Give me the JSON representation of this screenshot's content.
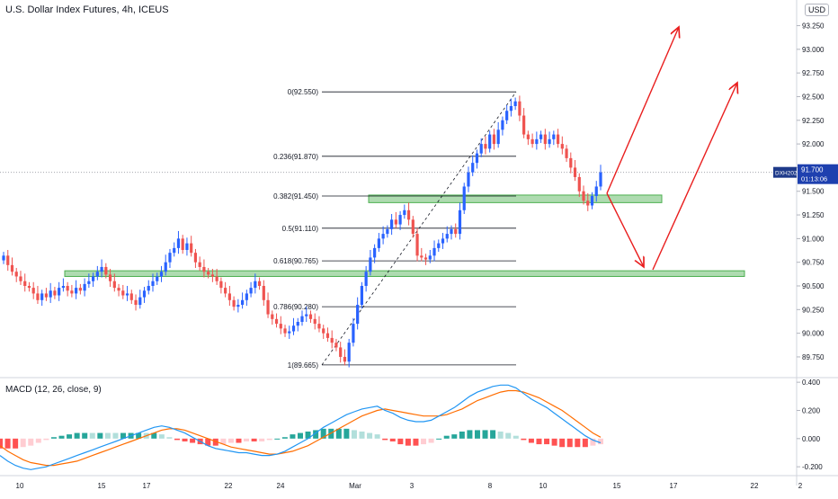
{
  "header": {
    "title": "U.S. Dollar Index Futures, 4h, ICEUS",
    "currency_badge": "USD"
  },
  "macd": {
    "label": "MACD (12, 26, close, 9)",
    "ticks": [
      "0.400",
      "0.200",
      "0.000",
      "-0.200"
    ]
  },
  "price_axis": {
    "ticks": [
      "93.250",
      "93.000",
      "92.750",
      "92.500",
      "92.250",
      "92.000",
      "91.750",
      "91.500",
      "91.250",
      "91.000",
      "90.750",
      "90.500",
      "90.250",
      "90.000",
      "89.750"
    ],
    "symbol_tag": "DXH2021",
    "last_price": "91.700",
    "countdown": "01:13:06"
  },
  "time_axis": {
    "ticks": [
      "10",
      "15",
      "17",
      "22",
      "24",
      "Mar",
      "3",
      "8",
      "10",
      "15",
      "17",
      "22",
      "2"
    ]
  },
  "fibonacci": [
    {
      "label": "0(92.550)",
      "price": 92.55
    },
    {
      "label": "0.236(91.870)",
      "price": 91.87
    },
    {
      "label": "0.382(91.450)",
      "price": 91.45
    },
    {
      "label": "0.5(91.110)",
      "price": 91.11
    },
    {
      "label": "0.618(90.765)",
      "price": 90.765
    },
    {
      "label": "0.786(90.280)",
      "price": 90.28
    },
    {
      "label": "1(89.665)",
      "price": 89.665
    }
  ],
  "zones": [
    {
      "name": "upper-support-zone",
      "low": 91.38,
      "high": 91.46,
      "color": "#4caf50"
    },
    {
      "name": "lower-support-zone",
      "low": 90.6,
      "high": 90.66,
      "color": "#4caf50"
    }
  ],
  "colors": {
    "up": "#2962ff",
    "down": "#ef5350",
    "macd_line": "#2196f3",
    "signal_line": "#ff6d00",
    "hist_up_strong": "#26a69a",
    "hist_up_weak": "#b2dfdb",
    "hist_down_strong": "#ff5252",
    "hist_down_weak": "#ffcdd2",
    "arrow": "#e91e1e",
    "zone": "#4caf50"
  },
  "chart_data": {
    "type": "candlestick",
    "y_range": [
      89.55,
      93.35
    ],
    "macd_range": [
      -0.25,
      0.42
    ],
    "closes": [
      90.82,
      90.72,
      90.65,
      90.6,
      90.55,
      90.5,
      90.48,
      90.42,
      90.35,
      90.42,
      90.38,
      90.45,
      90.4,
      90.48,
      90.5,
      90.45,
      90.42,
      90.48,
      90.45,
      90.52,
      90.55,
      90.6,
      90.65,
      90.7,
      90.62,
      90.55,
      90.48,
      90.45,
      90.4,
      90.42,
      90.35,
      90.3,
      90.38,
      90.45,
      90.5,
      90.55,
      90.6,
      90.65,
      90.75,
      90.85,
      90.9,
      91.0,
      90.88,
      90.95,
      90.85,
      90.75,
      90.7,
      90.65,
      90.62,
      90.6,
      90.55,
      90.48,
      90.42,
      90.35,
      90.28,
      90.3,
      90.35,
      90.42,
      90.48,
      90.55,
      90.5,
      90.35,
      90.2,
      90.15,
      90.1,
      90.05,
      90.0,
      90.02,
      90.08,
      90.12,
      90.18,
      90.2,
      90.15,
      90.1,
      90.05,
      90.0,
      89.95,
      89.9,
      89.85,
      89.75,
      89.7,
      89.9,
      90.1,
      90.3,
      90.5,
      90.65,
      90.8,
      90.9,
      91.0,
      91.05,
      91.1,
      91.2,
      91.15,
      91.25,
      91.3,
      91.2,
      91.05,
      90.82,
      90.8,
      90.78,
      90.82,
      90.9,
      90.95,
      91.0,
      91.05,
      91.1,
      91.05,
      91.3,
      91.55,
      91.7,
      91.8,
      91.9,
      92.0,
      91.95,
      92.1,
      92.0,
      92.15,
      92.25,
      92.35,
      92.4,
      92.45,
      92.3,
      92.1,
      92.05,
      92.0,
      92.05,
      92.1,
      92.0,
      92.05,
      92.1,
      92.0,
      91.95,
      91.85,
      91.75,
      91.65,
      91.5,
      91.4,
      91.35,
      91.45,
      91.55,
      91.7
    ],
    "macd_line": [
      -0.12,
      -0.16,
      -0.19,
      -0.21,
      -0.22,
      -0.21,
      -0.2,
      -0.18,
      -0.16,
      -0.14,
      -0.12,
      -0.1,
      -0.08,
      -0.06,
      -0.04,
      -0.02,
      0.0,
      0.02,
      0.04,
      0.06,
      0.08,
      0.09,
      0.08,
      0.06,
      0.04,
      0.01,
      -0.02,
      -0.05,
      -0.07,
      -0.08,
      -0.09,
      -0.1,
      -0.1,
      -0.11,
      -0.12,
      -0.12,
      -0.11,
      -0.09,
      -0.06,
      -0.03,
      0.0,
      0.04,
      0.08,
      0.11,
      0.14,
      0.17,
      0.19,
      0.21,
      0.22,
      0.23,
      0.2,
      0.18,
      0.15,
      0.13,
      0.12,
      0.12,
      0.13,
      0.16,
      0.19,
      0.22,
      0.26,
      0.3,
      0.33,
      0.35,
      0.37,
      0.38,
      0.38,
      0.36,
      0.32,
      0.28,
      0.25,
      0.22,
      0.18,
      0.14,
      0.1,
      0.06,
      0.02,
      -0.01,
      -0.03
    ],
    "signal_line": [
      -0.05,
      -0.09,
      -0.12,
      -0.15,
      -0.17,
      -0.18,
      -0.19,
      -0.19,
      -0.18,
      -0.17,
      -0.16,
      -0.14,
      -0.12,
      -0.1,
      -0.08,
      -0.06,
      -0.04,
      -0.02,
      0.0,
      0.02,
      0.04,
      0.06,
      0.07,
      0.07,
      0.06,
      0.04,
      0.02,
      0.0,
      -0.02,
      -0.04,
      -0.06,
      -0.07,
      -0.08,
      -0.09,
      -0.1,
      -0.11,
      -0.11,
      -0.1,
      -0.09,
      -0.07,
      -0.05,
      -0.02,
      0.01,
      0.04,
      0.07,
      0.1,
      0.13,
      0.16,
      0.18,
      0.2,
      0.21,
      0.2,
      0.19,
      0.18,
      0.17,
      0.16,
      0.16,
      0.16,
      0.17,
      0.19,
      0.21,
      0.24,
      0.27,
      0.29,
      0.31,
      0.33,
      0.34,
      0.34,
      0.33,
      0.31,
      0.29,
      0.26,
      0.23,
      0.2,
      0.16,
      0.12,
      0.08,
      0.04,
      0.01
    ]
  }
}
